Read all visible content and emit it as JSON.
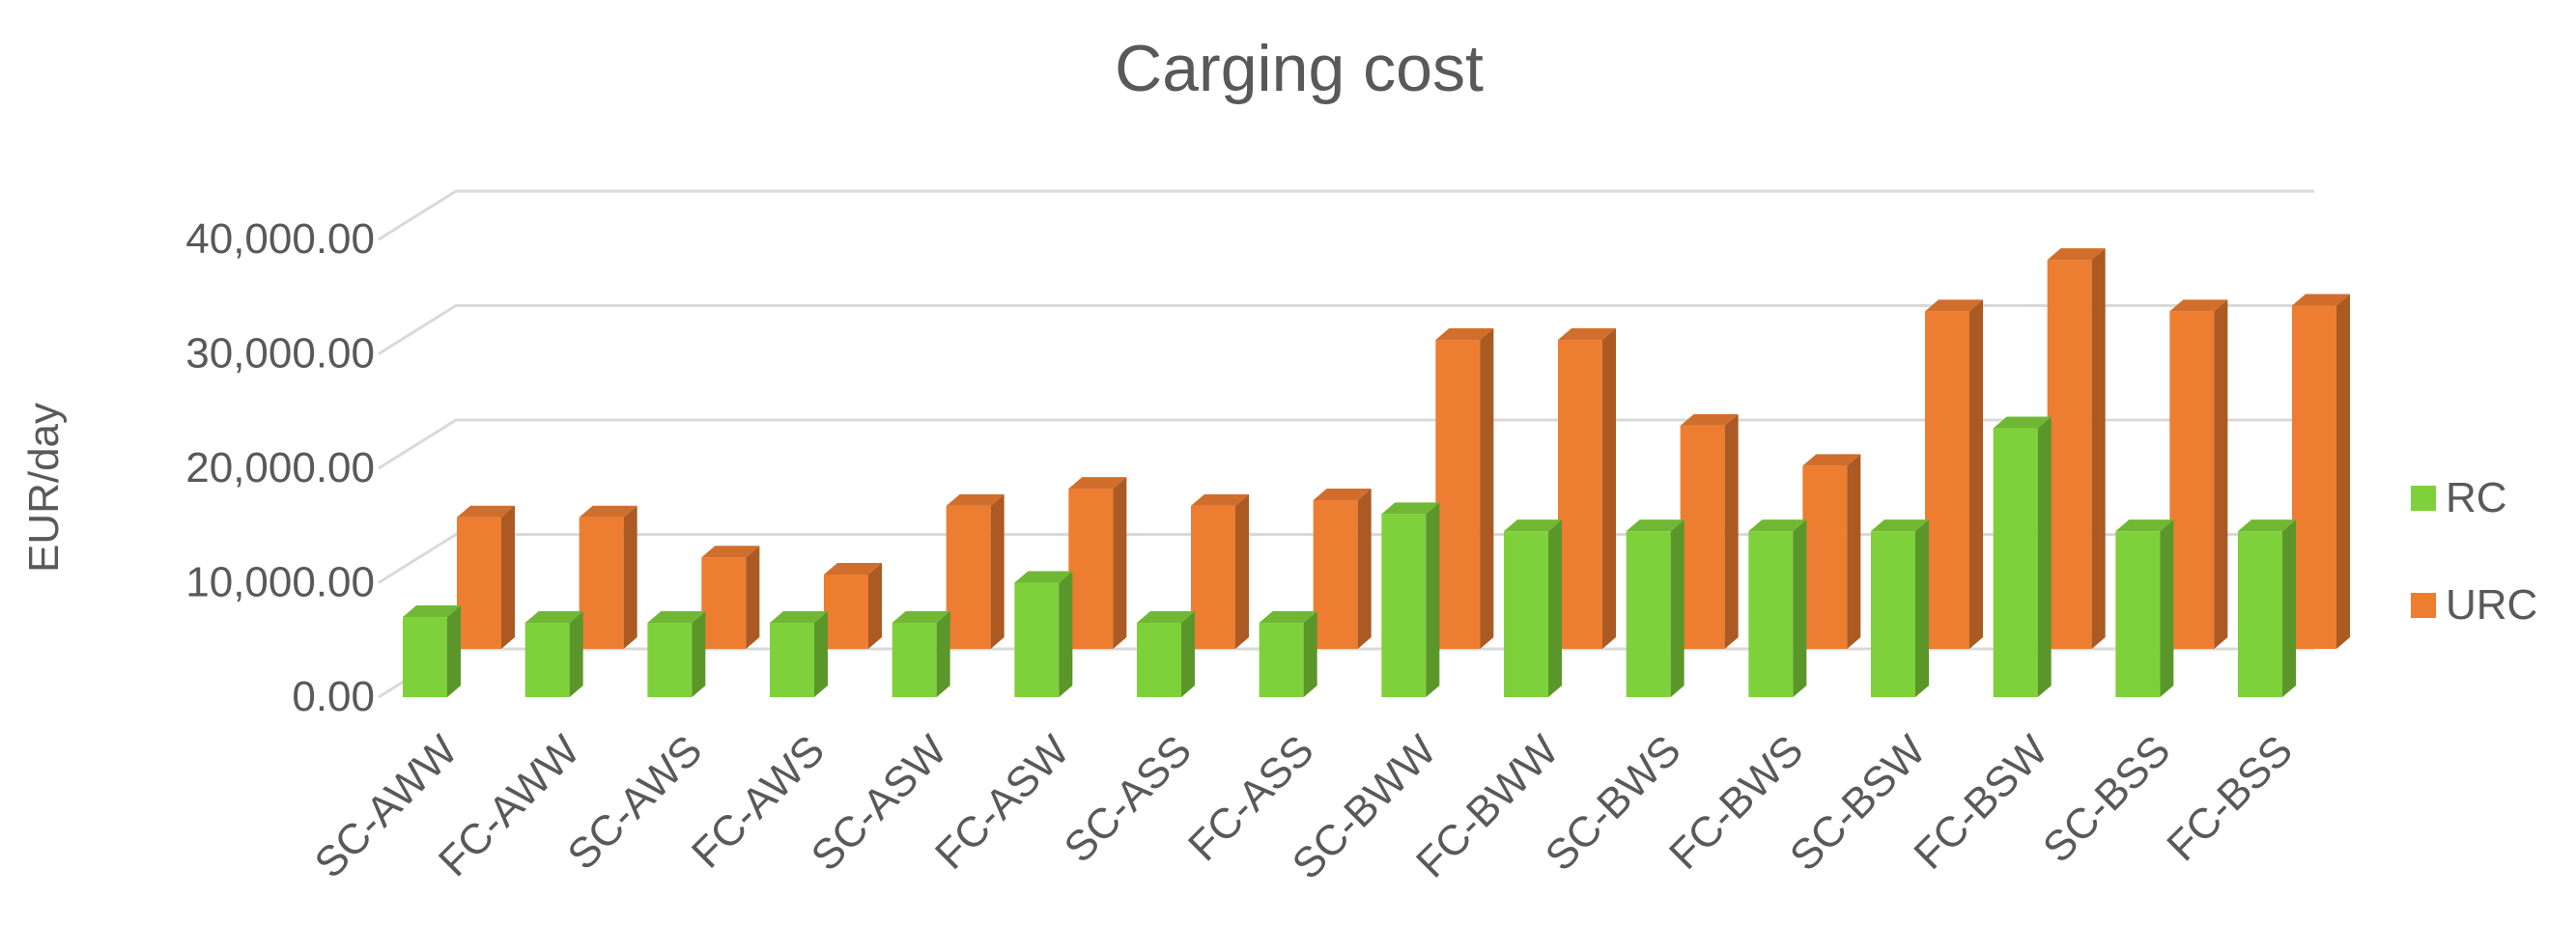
{
  "chart_data": {
    "type": "bar",
    "title": "Carging cost",
    "ylabel": "EUR/day",
    "xlabel": "",
    "ylim": [
      0,
      40000
    ],
    "yticks": [
      "0.00",
      "10,000.00",
      "20,000.00",
      "30,000.00",
      "40,000.00"
    ],
    "categories": [
      "SC-AWW",
      "FC-AWW",
      "SC-AWS",
      "FC-AWS",
      "SC-ASW",
      "FC-ASW",
      "SC-ASS",
      "FC-ASS",
      "SC-BWW",
      "FC-BWW",
      "SC-BWS",
      "FC-BWS",
      "SC-BSW",
      "FC-BSW",
      "SC-BSS",
      "FC-BSS"
    ],
    "series": [
      {
        "name": "RC",
        "color": "#7fd13b",
        "values": [
          7000,
          6500,
          6500,
          6500,
          6500,
          10000,
          6500,
          6500,
          16000,
          14500,
          14500,
          14500,
          14500,
          23500,
          14500,
          14500
        ]
      },
      {
        "name": "URC",
        "color": "#ed7d31",
        "values": [
          11500,
          11500,
          8000,
          6500,
          12500,
          14000,
          12500,
          13000,
          27000,
          27000,
          19500,
          16000,
          29500,
          34000,
          29500,
          30000
        ]
      }
    ],
    "grid": true,
    "legend": "right",
    "style": "3d-column"
  }
}
